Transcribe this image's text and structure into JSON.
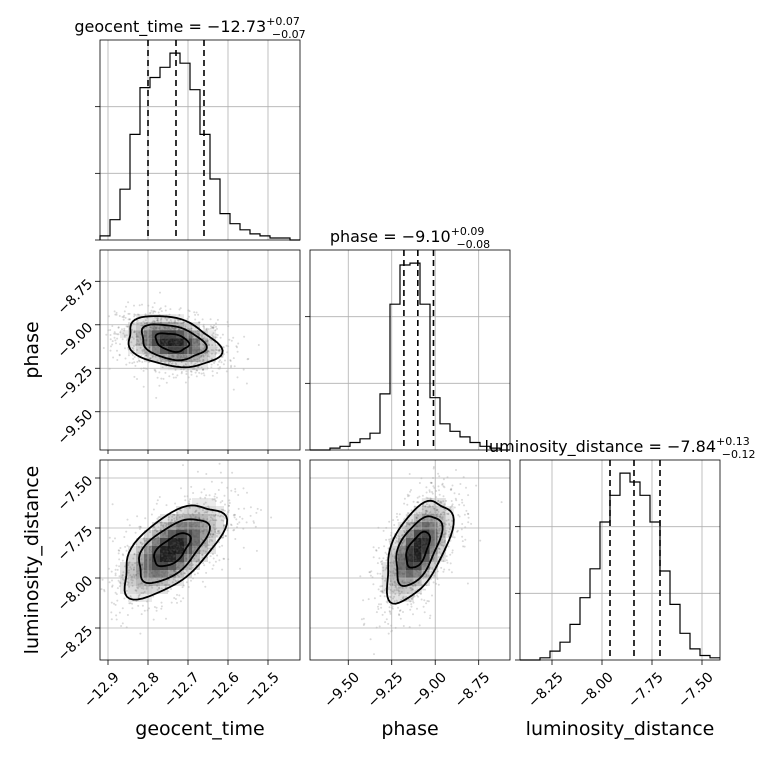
{
  "chart_data": {
    "type": "corner",
    "parameters": [
      "geocent_time",
      "phase",
      "luminosity_distance"
    ],
    "titles": [
      {
        "param": "geocent_time",
        "text": "geocent_time = −12.73",
        "plus": "+0.07",
        "minus": "−0.07"
      },
      {
        "param": "phase",
        "text": "phase = −9.10",
        "plus": "+0.09",
        "minus": "−0.08"
      },
      {
        "param": "luminosity_distance",
        "text": "luminosity_distance = −7.84",
        "plus": "+0.13",
        "minus": "−0.12"
      }
    ],
    "ranges": {
      "geocent_time": [
        -12.92,
        -12.42
      ],
      "phase": [
        -9.72,
        -8.57
      ],
      "luminosity_distance": [
        -8.41,
        -7.41
      ]
    },
    "ticks": {
      "geocent_time": {
        "values": [
          -12.9,
          -12.8,
          -12.7,
          -12.6,
          -12.5
        ],
        "labels": [
          "−12.9",
          "−12.8",
          "−12.7",
          "−12.6",
          "−12.5"
        ]
      },
      "phase": {
        "values": [
          -9.5,
          -9.25,
          -9.0,
          -8.75
        ],
        "labels": [
          "−9.50",
          "−9.25",
          "−9.00",
          "−8.75"
        ]
      },
      "luminosity_distance": {
        "values": [
          -8.25,
          -8.0,
          -7.75,
          -7.5
        ],
        "labels": [
          "−8.25",
          "−8.00",
          "−7.75",
          "−7.50"
        ]
      }
    },
    "quantiles": {
      "geocent_time": [
        -12.8,
        -12.73,
        -12.66
      ],
      "phase": [
        -9.18,
        -9.1,
        -9.01
      ],
      "luminosity_distance": [
        -7.96,
        -7.84,
        -7.71
      ]
    },
    "histograms": {
      "geocent_time": {
        "edges": [
          -12.92,
          -12.895,
          -12.87,
          -12.845,
          -12.82,
          -12.795,
          -12.77,
          -12.745,
          -12.72,
          -12.695,
          -12.67,
          -12.645,
          -12.62,
          -12.595,
          -12.57,
          -12.545,
          -12.52,
          -12.495,
          -12.47,
          -12.445,
          -12.42
        ],
        "counts": [
          2,
          10,
          25,
          52,
          75,
          80,
          85,
          92,
          87,
          74,
          52,
          30,
          13,
          8,
          5,
          3,
          2,
          1,
          1,
          0
        ]
      },
      "phase": {
        "edges": [
          -9.72,
          -9.6625,
          -9.605,
          -9.5475,
          -9.49,
          -9.4325,
          -9.375,
          -9.3175,
          -9.26,
          -9.2025,
          -9.145,
          -9.0875,
          -9.03,
          -8.9725,
          -8.915,
          -8.8575,
          -8.8,
          -8.7425,
          -8.685,
          -8.6275,
          -8.57
        ],
        "counts": [
          0,
          0,
          1,
          2,
          4,
          6,
          9,
          30,
          78,
          99,
          100,
          78,
          28,
          14,
          10,
          7,
          4,
          2,
          1,
          0
        ]
      },
      "luminosity_distance": {
        "edges": [
          -8.41,
          -8.36,
          -8.31,
          -8.26,
          -8.21,
          -8.16,
          -8.11,
          -8.06,
          -8.01,
          -7.96,
          -7.91,
          -7.86,
          -7.81,
          -7.76,
          -7.71,
          -7.66,
          -7.61,
          -7.56,
          -7.51,
          -7.46,
          -7.41
        ],
        "counts": [
          0,
          0,
          1,
          4,
          8,
          16,
          28,
          41,
          62,
          74,
          84,
          80,
          74,
          62,
          40,
          25,
          12,
          5,
          2,
          1
        ]
      }
    },
    "joint": [
      {
        "x": "geocent_time",
        "y": "phase",
        "center": [
          -12.74,
          -9.1
        ],
        "spread": [
          0.055,
          0.07
        ],
        "rho": -0.3
      },
      {
        "x": "geocent_time",
        "y": "luminosity_distance",
        "center": [
          -12.74,
          -7.86
        ],
        "spread": [
          0.06,
          0.11
        ],
        "rho": 0.6
      },
      {
        "x": "phase",
        "y": "luminosity_distance",
        "center": [
          -9.1,
          -7.86
        ],
        "spread": [
          0.09,
          0.12
        ],
        "rho": 0.55
      }
    ],
    "grid": true
  }
}
